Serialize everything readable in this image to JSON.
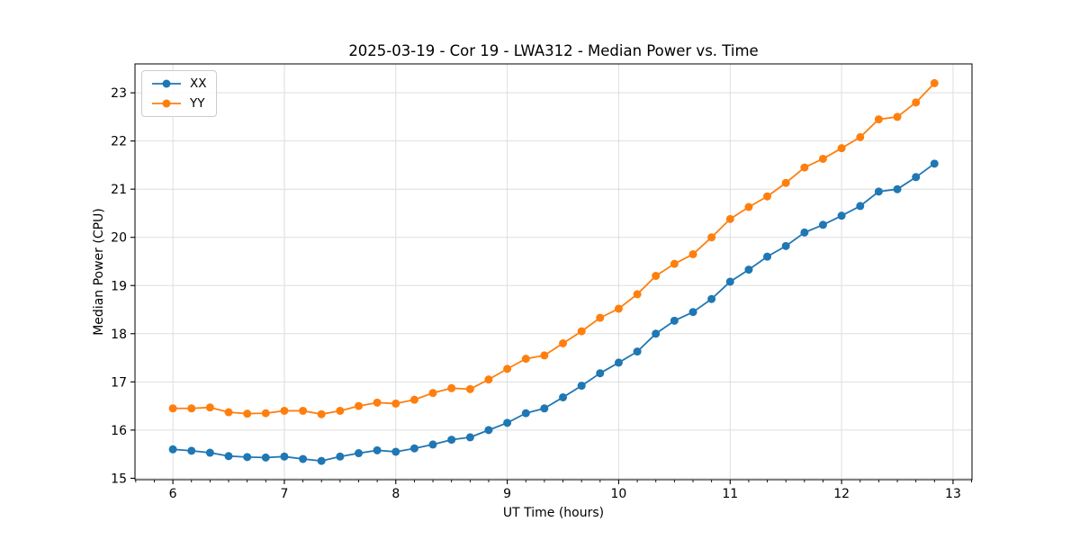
{
  "chart": {
    "title": "2025-03-19 - Cor 19 - LWA312 - Median Power vs. Time",
    "xlabel": "UT Time (hours)",
    "ylabel": "Median Power (CPU)"
  },
  "legend": {
    "position": "upper left",
    "items": [
      {
        "label": "XX",
        "color": "#1f77b4"
      },
      {
        "label": "YY",
        "color": "#ff7f0e"
      }
    ]
  },
  "chart_data": {
    "type": "line",
    "title": "2025-03-19 - Cor 19 - LWA312 - Median Power vs. Time",
    "xlabel": "UT Time (hours)",
    "ylabel": "Median Power (CPU)",
    "marker": "o",
    "grid": true,
    "legend_position": "upper left",
    "x": [
      6.0,
      6.167,
      6.333,
      6.5,
      6.667,
      6.833,
      7.0,
      7.167,
      7.333,
      7.5,
      7.667,
      7.833,
      8.0,
      8.167,
      8.333,
      8.5,
      8.667,
      8.833,
      9.0,
      9.167,
      9.333,
      9.5,
      9.667,
      9.833,
      10.0,
      10.167,
      10.333,
      10.5,
      10.667,
      10.833,
      11.0,
      11.167,
      11.333,
      11.5,
      11.667,
      11.833,
      12.0,
      12.167,
      12.333,
      12.5,
      12.667,
      12.833
    ],
    "series": [
      {
        "name": "XX",
        "color": "#1f77b4",
        "values": [
          15.6,
          15.57,
          15.53,
          15.46,
          15.44,
          15.43,
          15.45,
          15.4,
          15.36,
          15.45,
          15.52,
          15.58,
          15.55,
          15.62,
          15.7,
          15.8,
          15.85,
          16.0,
          16.15,
          16.35,
          16.45,
          16.68,
          16.92,
          17.18,
          17.4,
          17.63,
          18.0,
          18.27,
          18.45,
          18.72,
          19.08,
          19.33,
          19.6,
          19.82,
          20.1,
          20.26,
          20.45,
          20.65,
          20.95,
          21.0,
          21.25,
          21.53
        ]
      },
      {
        "name": "YY",
        "color": "#ff7f0e",
        "values": [
          16.45,
          16.45,
          16.47,
          16.37,
          16.34,
          16.35,
          16.4,
          16.4,
          16.33,
          16.4,
          16.5,
          16.57,
          16.55,
          16.63,
          16.77,
          16.87,
          16.85,
          17.05,
          17.27,
          17.48,
          17.55,
          17.8,
          18.05,
          18.33,
          18.52,
          18.82,
          19.2,
          19.45,
          19.65,
          20.0,
          20.38,
          20.63,
          20.85,
          21.13,
          21.45,
          21.63,
          21.85,
          22.08,
          22.45,
          22.5,
          22.8,
          23.2
        ]
      }
    ],
    "xticks": [
      6,
      7,
      8,
      9,
      10,
      11,
      12,
      13
    ],
    "yticks": [
      15,
      16,
      17,
      18,
      19,
      20,
      21,
      22,
      23
    ],
    "x_minor_interval": 0.166667,
    "xlim": [
      5.66,
      13.17
    ],
    "ylim": [
      14.97,
      23.6
    ],
    "grid_color": "#dedede",
    "axis_color": "#000000"
  }
}
